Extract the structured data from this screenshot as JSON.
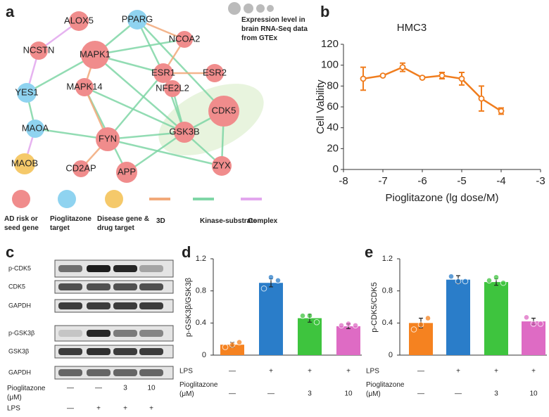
{
  "panels": [
    "a",
    "b",
    "c",
    "d",
    "e"
  ],
  "network": {
    "nodes": [
      {
        "label": "ALOX5",
        "color": "#f08c8c"
      },
      {
        "label": "PPARG",
        "color": "#8fd3f0"
      },
      {
        "label": "NCOA2",
        "color": "#f08c8c"
      },
      {
        "label": "NCSTN",
        "color": "#f08c8c"
      },
      {
        "label": "MAPK1",
        "color": "#f08c8c"
      },
      {
        "label": "ESR1",
        "color": "#f08c8c"
      },
      {
        "label": "ESR2",
        "color": "#f08c8c"
      },
      {
        "label": "YES1",
        "color": "#8fd3f0"
      },
      {
        "label": "MAPK14",
        "color": "#f08c8c"
      },
      {
        "label": "NFE2L2",
        "color": "#f08c8c"
      },
      {
        "label": "CDK5",
        "color": "#f08c8c"
      },
      {
        "label": "MAOA",
        "color": "#8fd3f0"
      },
      {
        "label": "GSK3B",
        "color": "#f08c8c"
      },
      {
        "label": "FYN",
        "color": "#f08c8c"
      },
      {
        "label": "MAOB",
        "color": "#f5c96a"
      },
      {
        "label": "CD2AP",
        "color": "#f08c8c"
      },
      {
        "label": "APP",
        "color": "#f08c8c"
      },
      {
        "label": "ZYX",
        "color": "#f08c8c"
      }
    ],
    "expression_legend": "Expression level in brain RNA-Seq data from GTEx",
    "legend": [
      {
        "label": "AD risk or seed gene",
        "color": "#f08c8c"
      },
      {
        "label": "Pioglitazone target",
        "color": "#8fd3f0"
      },
      {
        "label": "Disease gene & drug target",
        "color": "#f5c96a"
      },
      {
        "label": "3D",
        "color": "#f2a97a"
      },
      {
        "label": "Kinase-substrate",
        "color": "#7fd6a6"
      },
      {
        "label": "Complex",
        "color": "#e2a6ee"
      }
    ]
  },
  "blot": {
    "rows": [
      "p-CDK5",
      "CDK5",
      "GAPDH",
      "p-GSK3β",
      "GSK3β",
      "GAPDH"
    ],
    "conditions": [
      {
        "name": "Pioglitazone (μM)",
        "labels": [
          "—",
          "—",
          "3",
          "10"
        ]
      },
      {
        "name": "LPS",
        "labels": [
          "—",
          "+",
          "+",
          "+"
        ]
      }
    ]
  },
  "chart_data": [
    {
      "type": "line",
      "title": "HMC3",
      "ylabel": "Cell Vability",
      "xlabel": "Pioglitazone (lg dose/M)",
      "x": [
        -7.5,
        -7,
        -6.5,
        -6,
        -5.5,
        -5,
        -4.5,
        -4
      ],
      "series": [
        {
          "color": "#f07d1e",
          "values": [
            87,
            90,
            98,
            88,
            90,
            87,
            68,
            56
          ],
          "errors": [
            11,
            1,
            4,
            1,
            3,
            6,
            12,
            3
          ]
        }
      ],
      "xlim": [
        -8,
        -3
      ],
      "xticks": [
        -8,
        -7,
        -6,
        -5,
        -4,
        -3
      ],
      "ylim": [
        0,
        120
      ],
      "yticks": [
        0,
        20,
        40,
        60,
        80,
        100,
        120
      ]
    },
    {
      "type": "bar",
      "ylabel": "p-GSK3β/GSK3β",
      "values": [
        0.13,
        0.9,
        0.46,
        0.36
      ],
      "errors": [
        0.03,
        0.05,
        0.05,
        0.03
      ],
      "points": [
        [
          0.1,
          0.13,
          0.16
        ],
        [
          0.83,
          0.97,
          0.93
        ],
        [
          0.49,
          0.49,
          0.41
        ],
        [
          0.37,
          0.39,
          0.37
        ]
      ],
      "colors": [
        "#f58220",
        "#2a7dc9",
        "#3ec43e",
        "#de6bc4"
      ],
      "ylim": [
        0,
        1.2
      ],
      "yticks": [
        0,
        0.4,
        0.8,
        1.2
      ],
      "conditions": [
        {
          "name": "LPS",
          "labels": [
            "—",
            "+",
            "+",
            "+"
          ]
        },
        {
          "name": "Pioglitazone (μM)",
          "labels": [
            "—",
            "—",
            "3",
            "10"
          ]
        }
      ]
    },
    {
      "type": "bar",
      "ylabel": "p-CDK5/CDK5",
      "values": [
        0.4,
        0.94,
        0.91,
        0.42
      ],
      "errors": [
        0.06,
        0.05,
        0.04,
        0.04
      ],
      "points": [
        [
          0.32,
          0.38,
          0.46
        ],
        [
          0.98,
          0.92,
          0.92
        ],
        [
          0.93,
          0.97,
          0.9
        ],
        [
          0.47,
          0.39,
          0.39
        ]
      ],
      "colors": [
        "#f58220",
        "#2a7dc9",
        "#3ec43e",
        "#de6bc4"
      ],
      "ylim": [
        0,
        1.2
      ],
      "yticks": [
        0,
        0.4,
        0.8,
        1.2
      ],
      "conditions": [
        {
          "name": "LPS",
          "labels": [
            "—",
            "+",
            "+",
            "+"
          ]
        },
        {
          "name": "Pioglitazone (μM)",
          "labels": [
            "—",
            "—",
            "3",
            "10"
          ]
        }
      ]
    }
  ]
}
